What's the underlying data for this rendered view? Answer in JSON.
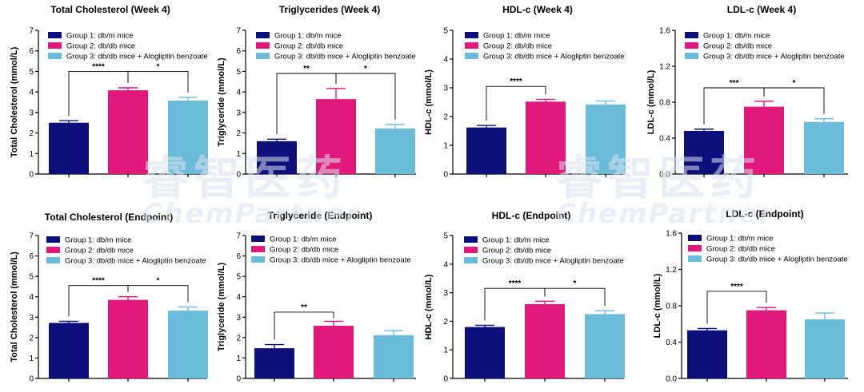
{
  "colors": {
    "group1": "#0d0f7a",
    "group2": "#e0197a",
    "group3": "#6abcd8"
  },
  "legend": [
    "Group 1: db/m mice",
    "Group 2: db/db mice",
    "Group 3: db/db mice + Alogliptin benzoate"
  ],
  "watermark": {
    "cn": "睿智医药",
    "en": "ChemPartner"
  },
  "chart_data": [
    {
      "type": "bar",
      "title": "Total Cholesterol (Week 4)",
      "ylabel": "Total Cholesterol (mmol/L)",
      "ylim": [
        0,
        7
      ],
      "yticks": [
        "0",
        "1",
        "2",
        "3",
        "4",
        "5",
        "6",
        "7"
      ],
      "categories": [
        "Group 1: db/m mice",
        "Group 2: db/db mice",
        "Group 3: db/db mice + Alogliptin benzoate"
      ],
      "values": [
        2.5,
        4.08,
        3.58
      ],
      "errors": [
        0.1,
        0.12,
        0.15
      ],
      "annotations": [
        {
          "from": 0,
          "to": 1,
          "label": "****",
          "y": 5.0
        },
        {
          "from": 1,
          "to": 2,
          "label": "*",
          "y": 5.0
        }
      ]
    },
    {
      "type": "bar",
      "title": "Triglycerides (Week 4)",
      "ylabel": "Triglyceride (mmol/L)",
      "ylim": [
        0,
        7
      ],
      "yticks": [
        "0",
        "1",
        "2",
        "3",
        "4",
        "5",
        "6",
        "7"
      ],
      "categories": [
        "Group 1: db/m mice",
        "Group 2: db/db mice",
        "Group 3: db/db mice + Alogliptin benzoate"
      ],
      "values": [
        1.6,
        3.65,
        2.22
      ],
      "errors": [
        0.1,
        0.52,
        0.2
      ],
      "annotations": [
        {
          "from": 0,
          "to": 1,
          "label": "**",
          "y": 4.9
        },
        {
          "from": 1,
          "to": 2,
          "label": "*",
          "y": 4.9
        }
      ]
    },
    {
      "type": "bar",
      "title": "HDL-c (Week 4)",
      "ylabel": "HDL-c (mmol/L)",
      "ylim": [
        0,
        5
      ],
      "yticks": [
        "0",
        "1",
        "2",
        "3",
        "4",
        "5"
      ],
      "categories": [
        "Group 1: db/m mice",
        "Group 2: db/db mice",
        "Group 3: db/db mice + Alogliptin benzoate"
      ],
      "values": [
        1.62,
        2.52,
        2.42
      ],
      "errors": [
        0.07,
        0.08,
        0.12
      ],
      "annotations": [
        {
          "from": 0,
          "to": 1,
          "label": "****",
          "y": 3.05
        }
      ]
    },
    {
      "type": "bar",
      "title": "LDL-c (Week 4)",
      "ylabel": "LDL-c (mmol/L)",
      "ylim": [
        0,
        1.6
      ],
      "yticks": [
        "0.0",
        "0.4",
        "0.8",
        "1.2",
        "1.6"
      ],
      "categories": [
        "Group 1: db/m mice",
        "Group 2: db/db mice",
        "Group 3: db/db mice + Alogliptin benzoate"
      ],
      "values": [
        0.48,
        0.75,
        0.58
      ],
      "errors": [
        0.02,
        0.06,
        0.035
      ],
      "annotations": [
        {
          "from": 0,
          "to": 1,
          "label": "***",
          "y": 0.96
        },
        {
          "from": 1,
          "to": 2,
          "label": "*",
          "y": 0.96
        }
      ]
    },
    {
      "type": "bar",
      "title": "Total Cholesterol (Endpoint)",
      "ylabel": "Total Cholesterol (mmol/L)",
      "ylim": [
        0,
        7
      ],
      "yticks": [
        "0",
        "1",
        "2",
        "3",
        "4",
        "5",
        "6",
        "7"
      ],
      "categories": [
        "Group 1: db/m mice",
        "Group 2: db/db mice",
        "Group 3: db/db mice + Alogliptin benzoate"
      ],
      "values": [
        2.72,
        3.85,
        3.32
      ],
      "errors": [
        0.08,
        0.15,
        0.18
      ],
      "annotations": [
        {
          "from": 0,
          "to": 1,
          "label": "****",
          "y": 4.55
        },
        {
          "from": 1,
          "to": 2,
          "label": "*",
          "y": 4.55
        }
      ]
    },
    {
      "type": "bar",
      "title": "Triglyceride (Endpoint)",
      "ylabel": "Triglyceride (mmol/L)",
      "ylim": [
        0,
        7
      ],
      "yticks": [
        "0",
        "1",
        "2",
        "3",
        "4",
        "5",
        "6",
        "7"
      ],
      "categories": [
        "Group 1: db/m mice",
        "Group 2: db/db mice",
        "Group 3: db/db mice + Alogliptin benzoate"
      ],
      "values": [
        1.48,
        2.58,
        2.12
      ],
      "errors": [
        0.18,
        0.22,
        0.22
      ],
      "annotations": [
        {
          "from": 0,
          "to": 1,
          "label": "**",
          "y": 3.25
        }
      ]
    },
    {
      "type": "bar",
      "title": "HDL-c (Endpoint)",
      "ylabel": "HDL-c (mmol/L)",
      "ylim": [
        0,
        5
      ],
      "yticks": [
        "0",
        "1",
        "2",
        "3",
        "4",
        "5"
      ],
      "categories": [
        "Group 1: db/m mice",
        "Group 2: db/db mice",
        "Group 3: db/db mice + Alogliptin benzoate"
      ],
      "values": [
        1.8,
        2.6,
        2.25
      ],
      "errors": [
        0.06,
        0.1,
        0.12
      ],
      "annotations": [
        {
          "from": 0,
          "to": 1,
          "label": "****",
          "y": 3.15
        },
        {
          "from": 1,
          "to": 2,
          "label": "*",
          "y": 3.15
        }
      ]
    },
    {
      "type": "bar",
      "title": "LDL-c (Endpoint)",
      "ylabel": "LDL-c (mmol/L)",
      "ylim": [
        0,
        1.6
      ],
      "yticks": [
        "0.0",
        "0.4",
        "0.8",
        "1.2",
        "1.6"
      ],
      "categories": [
        "Group 1: db/m mice",
        "Group 2: db/db mice",
        "Group 3: db/db mice + Alogliptin benzoate"
      ],
      "values": [
        0.53,
        0.75,
        0.65
      ],
      "errors": [
        0.02,
        0.03,
        0.07
      ],
      "annotations": [
        {
          "from": 0,
          "to": 1,
          "label": "****",
          "y": 0.96
        }
      ]
    }
  ]
}
